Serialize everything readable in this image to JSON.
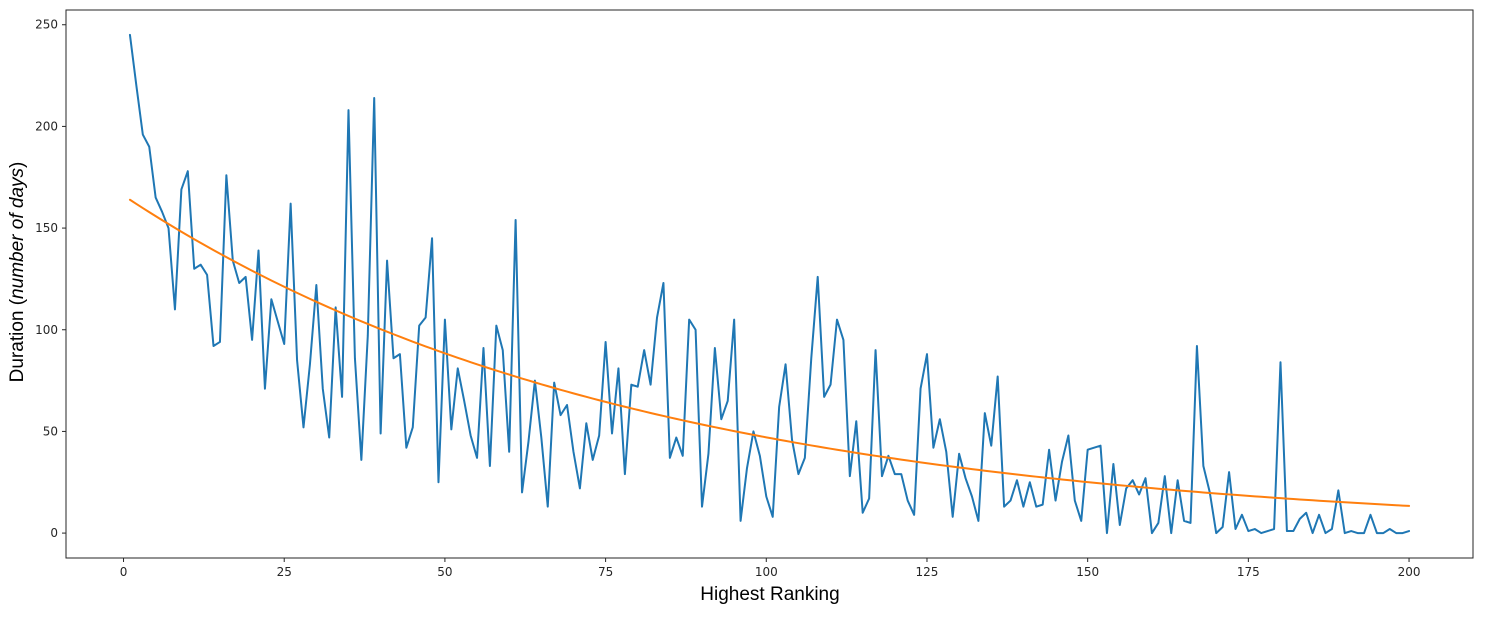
{
  "chart_data": {
    "type": "line",
    "xlabel": "Highest Ranking",
    "ylabel_parts": [
      "Duration (",
      "number of days",
      ")"
    ],
    "xlim": [
      -8.95,
      209.95
    ],
    "ylim": [
      -12.25,
      257.25
    ],
    "x_ticks": [
      0,
      25,
      50,
      75,
      100,
      125,
      150,
      175,
      200
    ],
    "y_ticks": [
      0,
      50,
      100,
      150,
      200,
      250
    ],
    "x_tick_labels": [
      "0",
      "25",
      "50",
      "75",
      "100",
      "125",
      "150",
      "175",
      "200"
    ],
    "y_tick_labels": [
      "0",
      "50",
      "100",
      "150",
      "200",
      "250"
    ],
    "grid": false,
    "series": [
      {
        "color": "#1f77b4",
        "x_start": 1,
        "x_step": 1,
        "values": [
          245,
          220,
          196,
          190,
          165,
          158,
          150,
          110,
          169,
          178,
          130,
          132,
          127,
          92,
          94,
          176,
          134,
          123,
          126,
          95,
          139,
          71,
          115,
          104,
          93,
          162,
          85,
          52,
          83,
          122,
          71,
          47,
          111,
          67,
          208,
          86,
          36,
          97,
          214,
          49,
          134,
          86,
          88,
          42,
          52,
          102,
          106,
          145,
          25,
          105,
          51,
          81,
          65,
          48,
          37,
          91,
          33,
          102,
          90,
          40,
          154,
          20,
          45,
          75,
          47,
          13,
          74,
          58,
          63,
          40,
          22,
          54,
          36,
          48,
          94,
          49,
          81,
          29,
          73,
          72,
          90,
          73,
          106,
          123,
          37,
          47,
          38,
          105,
          100,
          13,
          39,
          91,
          56,
          65,
          105,
          6,
          32,
          50,
          38,
          18,
          8,
          62,
          83,
          46,
          29,
          37,
          86,
          126,
          67,
          73,
          105,
          95,
          28,
          55,
          10,
          17,
          90,
          28,
          38,
          29,
          29,
          16,
          9,
          71,
          88,
          42,
          56,
          40,
          8,
          39,
          27,
          18,
          6,
          59,
          43,
          77,
          13,
          16,
          26,
          13,
          25,
          13,
          14,
          41,
          16,
          35,
          48,
          16,
          6,
          41,
          42,
          43,
          0,
          34,
          4,
          22,
          26,
          19,
          27,
          0,
          5,
          28,
          0,
          26,
          6,
          5,
          92,
          33,
          20,
          0,
          3,
          30,
          2,
          9,
          1,
          2,
          0,
          1,
          2,
          84,
          1,
          1,
          7,
          10,
          0,
          9,
          0,
          2,
          21,
          0,
          1,
          0,
          0,
          9,
          0,
          0,
          2,
          0,
          0,
          1
        ]
      },
      {
        "color": "#ff7f0e",
        "fit": {
          "model": "exponential",
          "a": 166.0,
          "b": 0.0126
        },
        "x_range": [
          1,
          200
        ]
      }
    ]
  }
}
